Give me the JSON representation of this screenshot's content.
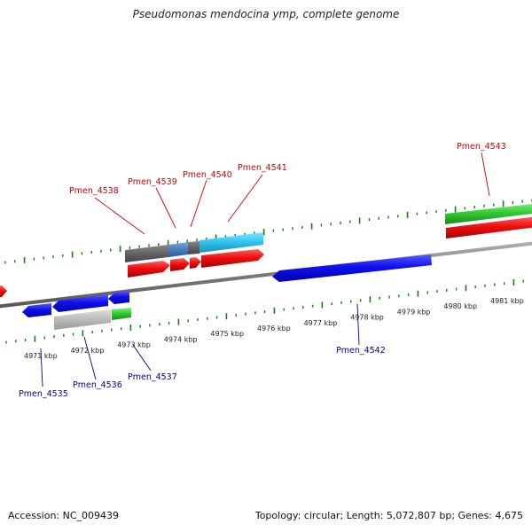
{
  "title": "Pseudomonas mendocina ymp, complete genome",
  "footer": {
    "accession": "Accession: NC_009439",
    "summary": "Topology: circular; Length: 5,072,807 bp; Genes: 4,675"
  },
  "colors": {
    "top_label": "#cc0000",
    "bottom_label": "#00008b",
    "tick": "#1a7a1a",
    "backbone": "#808080"
  },
  "kbp_ticks": [
    "4971 kbp",
    "4972 kbp",
    "4973 kbp",
    "4974 kbp",
    "4975 kbp",
    "4976 kbp",
    "4977 kbp",
    "4978 kbp",
    "4979 kbp",
    "4980 kbp",
    "4981 kbp"
  ],
  "gene_labels_top": [
    "Pmen_4538",
    "Pmen_4539",
    "Pmen_4540",
    "Pmen_4541",
    "Pmen_4543"
  ],
  "gene_labels_bottom": [
    "Pmen_4535",
    "Pmen_4536",
    "Pmen_4537",
    "Pmen_4542"
  ]
}
